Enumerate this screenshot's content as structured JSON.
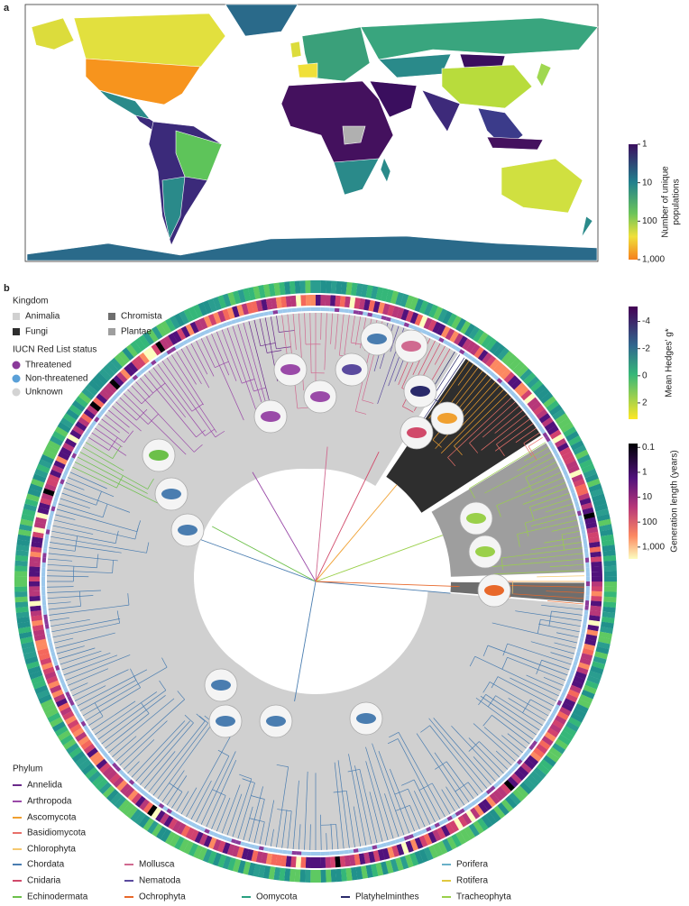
{
  "panel_a": {
    "label": "a",
    "colorbar": {
      "title_lines": [
        "Number of unique",
        "populations"
      ],
      "lim": [
        1,
        1000
      ],
      "log": true,
      "ticks": [
        1,
        10,
        100,
        {
          "value": 1000,
          "label": "1,000"
        }
      ]
    }
  },
  "panel_b": {
    "label": "b",
    "kingdom": {
      "title": "Kingdom",
      "items": [
        {
          "name": "Animalia",
          "color": "#d0d0d0"
        },
        {
          "name": "Chromista",
          "color": "#6e6e6e"
        },
        {
          "name": "Fungi",
          "color": "#2e2e2e"
        },
        {
          "name": "Plantae",
          "color": "#9e9e9e"
        }
      ]
    },
    "iucn": {
      "title": "IUCN Red List status",
      "items": [
        {
          "name": "Threatened",
          "color": "#8a3a9a"
        },
        {
          "name": "Non-threatened",
          "color": "#5aa0d8"
        },
        {
          "name": "Unknown",
          "color": "#d3d3d3"
        }
      ]
    },
    "hedges_colorbar": {
      "title": "Mean Hedges' g*",
      "lim": [
        -5.1,
        3.2
      ],
      "log": false,
      "ticks": [
        -4,
        -2,
        0,
        2
      ]
    },
    "generation_colorbar": {
      "title": "Generation length (years)",
      "lim": [
        0.07,
        3000
      ],
      "log": true,
      "ticks": [
        0.1,
        1,
        10,
        100,
        {
          "value": 1000,
          "label": "1,000"
        }
      ]
    },
    "phylum": {
      "title": "Phylum",
      "items": [
        {
          "name": "Annelida",
          "color": "#6a2a8a"
        },
        {
          "name": "Arthropoda",
          "color": "#9a4aa8"
        },
        {
          "name": "Ascomycota",
          "color": "#f0a030"
        },
        {
          "name": "Basidiomycota",
          "color": "#e8706a"
        },
        {
          "name": "Chlorophyta",
          "color": "#f5c870"
        },
        {
          "name": "Chordata",
          "color": "#4a7db0"
        },
        {
          "name": "Cnidaria",
          "color": "#d14a6a"
        },
        {
          "name": "Echinodermata",
          "color": "#6cc04a"
        },
        {
          "name": "Mollusca",
          "color": "#d06a90"
        },
        {
          "name": "Nematoda",
          "color": "#5a4a9e"
        },
        {
          "name": "Ochrophyta",
          "color": "#e8682a"
        },
        {
          "name": "Oomycota",
          "color": "#2aa080"
        },
        {
          "name": "Platyhelminthes",
          "color": "#2a2a6a"
        },
        {
          "name": "Porifera",
          "color": "#6ab0c8"
        },
        {
          "name": "Rotifera",
          "color": "#e0c840"
        },
        {
          "name": "Tracheophyta",
          "color": "#9ad04a"
        }
      ]
    }
  }
}
